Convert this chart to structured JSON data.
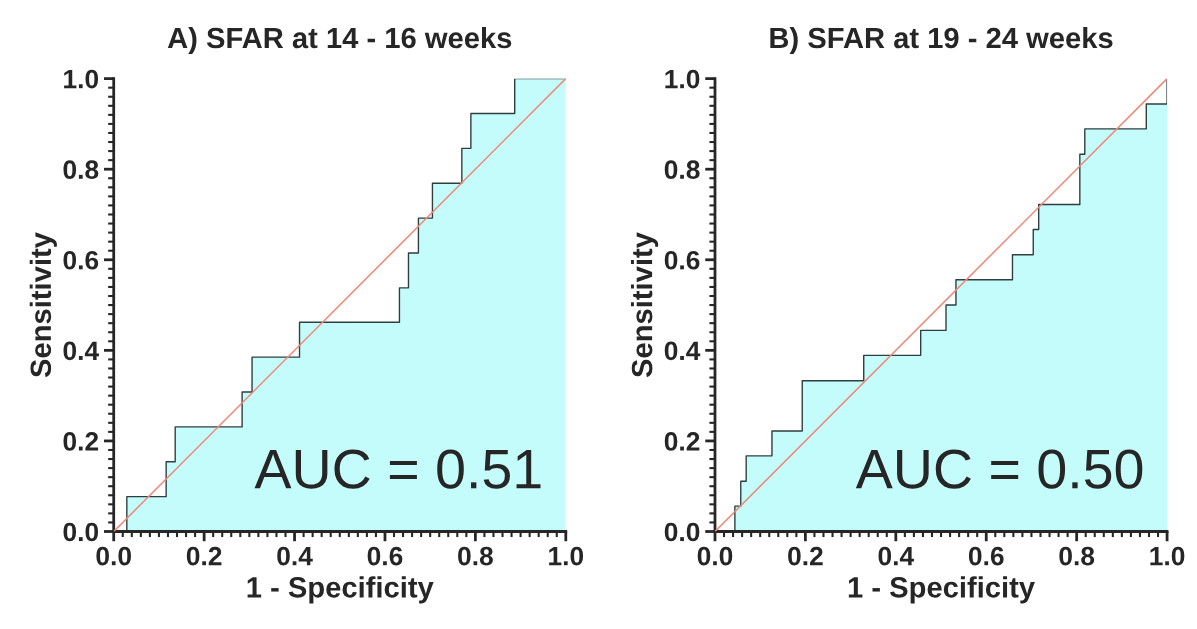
{
  "chart_data": [
    {
      "type": "area",
      "title": "A) SFAR at 14 - 16 weeks",
      "xlabel": "1 - Specificity",
      "ylabel": "Sensitivity",
      "xlim": [
        0,
        1
      ],
      "ylim": [
        0,
        1
      ],
      "xticks": [
        {
          "value": 0,
          "label": "0.0"
        },
        {
          "value": 0.2,
          "label": "0.2"
        },
        {
          "value": 0.4,
          "label": "0.4"
        },
        {
          "value": 0.6,
          "label": "0.6"
        },
        {
          "value": 0.8,
          "label": "0.8"
        },
        {
          "value": 1,
          "label": "1.0"
        }
      ],
      "yticks": [
        {
          "value": 0,
          "label": "0.0"
        },
        {
          "value": 0.2,
          "label": "0.2"
        },
        {
          "value": 0.4,
          "label": "0.4"
        },
        {
          "value": 0.6,
          "label": "0.6"
        },
        {
          "value": 0.8,
          "label": "0.8"
        },
        {
          "value": 1,
          "label": "1.0"
        }
      ],
      "grid": false,
      "legend": false,
      "annotations": [
        "AUC = 0.51"
      ],
      "series": [
        {
          "color": "#c4fbfb",
          "x": [
            0.029,
            0.029,
            0.116,
            0.136,
            0.284,
            0.306,
            0.411,
            0.632,
            0.652,
            0.674,
            0.705,
            0.77,
            0.79,
            0.887,
            1.0
          ],
          "values": [
            0,
            0.077,
            0.154,
            0.231,
            0.308,
            0.385,
            0.462,
            0.538,
            0.615,
            0.692,
            0.769,
            0.846,
            0.923,
            1.0,
            1.0
          ]
        },
        {
          "type": "line",
          "color": "#f08878",
          "x": [
            0,
            1
          ],
          "values": [
            0,
            1
          ]
        }
      ]
    },
    {
      "type": "area",
      "title": "B) SFAR at 19 - 24 weeks",
      "xlabel": "1 - Specificity",
      "ylabel": "Sensitivity",
      "xlim": [
        0,
        1
      ],
      "ylim": [
        0,
        1
      ],
      "xticks": [
        {
          "value": 0,
          "label": "0.0"
        },
        {
          "value": 0.2,
          "label": "0.2"
        },
        {
          "value": 0.4,
          "label": "0.4"
        },
        {
          "value": 0.6,
          "label": "0.6"
        },
        {
          "value": 0.8,
          "label": "0.8"
        },
        {
          "value": 1,
          "label": "1.0"
        }
      ],
      "yticks": [
        {
          "value": 0,
          "label": "0.0"
        },
        {
          "value": 0.2,
          "label": "0.2"
        },
        {
          "value": 0.4,
          "label": "0.4"
        },
        {
          "value": 0.6,
          "label": "0.6"
        },
        {
          "value": 0.8,
          "label": "0.8"
        },
        {
          "value": 1,
          "label": "1.0"
        }
      ],
      "grid": false,
      "legend": false,
      "annotations": [
        "AUC = 0.50"
      ],
      "series": [
        {
          "color": "#c4fbfb",
          "x": [
            0.044,
            0.044,
            0.057,
            0.069,
            0.126,
            0.193,
            0.329,
            0.455,
            0.511,
            0.533,
            0.658,
            0.704,
            0.716,
            0.807,
            0.818,
            0.954,
            1.0
          ],
          "values": [
            0,
            0.056,
            0.111,
            0.167,
            0.222,
            0.333,
            0.389,
            0.444,
            0.5,
            0.556,
            0.611,
            0.667,
            0.722,
            0.833,
            0.889,
            0.944,
            1.0
          ]
        },
        {
          "type": "line",
          "color": "#f08878",
          "x": [
            0,
            1
          ],
          "values": [
            0,
            1
          ]
        }
      ]
    }
  ]
}
